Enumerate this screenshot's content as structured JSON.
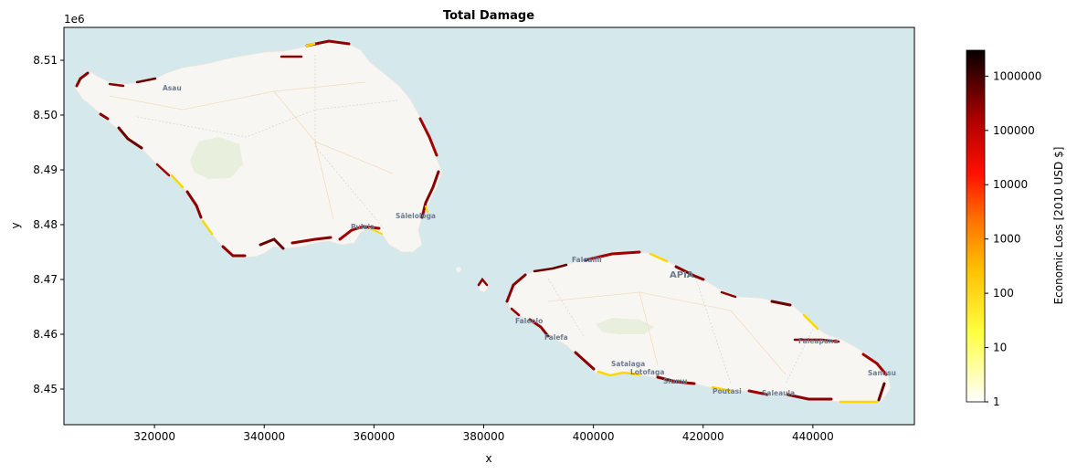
{
  "title": "Total Damage",
  "xlabel": "x",
  "ylabel": "y",
  "y_offset_label": "1e6",
  "colorbar_label": "Economic Loss [2010 USD $]",
  "chart_data": {
    "type": "heatmap",
    "x_ticks": [
      320000,
      340000,
      360000,
      380000,
      400000,
      420000,
      440000
    ],
    "y_ticks": [
      8.45,
      8.46,
      8.47,
      8.48,
      8.49,
      8.5,
      8.51
    ],
    "x_ticks_text": [
      "320000",
      "340000",
      "360000",
      "380000",
      "400000",
      "420000",
      "440000"
    ],
    "y_ticks_text": [
      "8.45",
      "8.46",
      "8.47",
      "8.48",
      "8.49",
      "8.50",
      "8.51"
    ],
    "xlim": [
      303500,
      458500
    ],
    "ylim": [
      8.4435,
      8.516
    ],
    "colorbar": {
      "scale": "log",
      "range": [
        1,
        3000000
      ],
      "ticks": [
        1,
        10,
        100,
        1000,
        10000,
        100000,
        1000000
      ],
      "ticks_text": [
        "1",
        "10",
        "100",
        "1000",
        "10000",
        "100000",
        "1000000"
      ],
      "colormap": "hot_r"
    }
  },
  "colors": {
    "sea": "#d5e8eb",
    "land": "#f8f6f2",
    "vegetation": "#e8efdc",
    "damage_high": "#8b0000",
    "damage_mid": "#ff4500",
    "damage_low": "#ffd700"
  },
  "places": [
    {
      "label": "Asau"
    },
    {
      "label": "Sālelologa"
    },
    {
      "label": "Puleia"
    },
    {
      "label": "Falealili"
    },
    {
      "label": "APIA"
    },
    {
      "label": "Faleolo"
    },
    {
      "label": "Falefa"
    },
    {
      "label": "Faleapuna"
    },
    {
      "label": "Satalaga"
    },
    {
      "label": "Poutasi"
    },
    {
      "label": "Saleaula"
    },
    {
      "label": "Sanusu"
    },
    {
      "label": "Siumu"
    },
    {
      "label": "Lotofaga"
    }
  ]
}
